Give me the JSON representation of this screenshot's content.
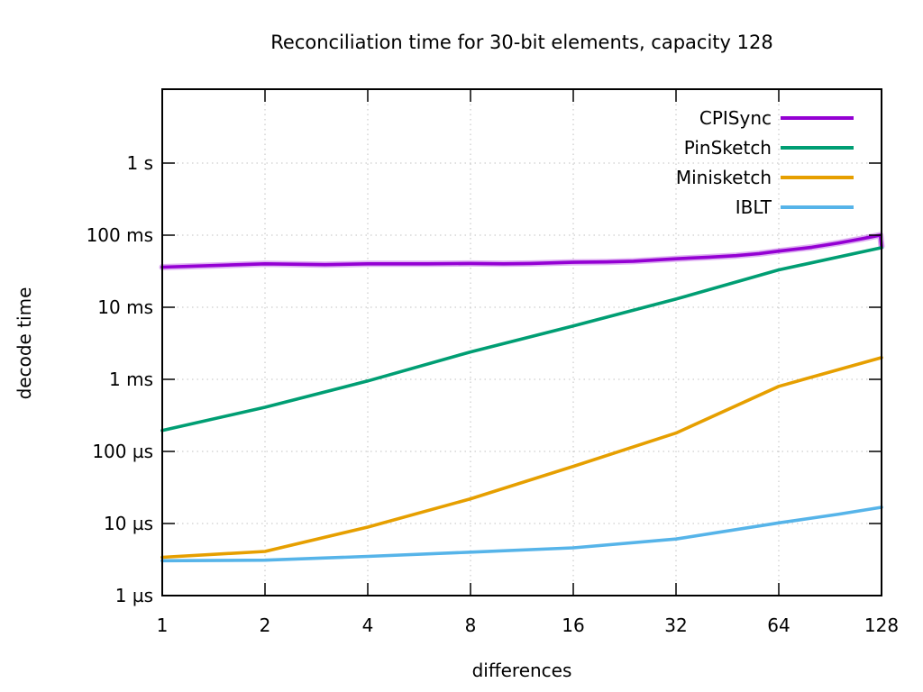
{
  "title": "Reconciliation time for 30-bit elements, capacity 128",
  "chart_data": {
    "type": "line",
    "x_scale": "log2",
    "y_scale": "log10",
    "xlabel": "differences",
    "ylabel": "decode time",
    "grid": true,
    "legend_position": "top-right-inside",
    "xlim": [
      1,
      128
    ],
    "ylim_us": [
      1,
      10600000
    ],
    "x_ticks": [
      {
        "x": 1,
        "label": "1"
      },
      {
        "x": 2,
        "label": "2"
      },
      {
        "x": 4,
        "label": "4"
      },
      {
        "x": 8,
        "label": "8"
      },
      {
        "x": 16,
        "label": "16"
      },
      {
        "x": 32,
        "label": "32"
      },
      {
        "x": 64,
        "label": "64"
      },
      {
        "x": 128,
        "label": "128"
      }
    ],
    "y_ticks": [
      {
        "us": 1,
        "label": "1 µs"
      },
      {
        "us": 10,
        "label": "10 µs"
      },
      {
        "us": 100,
        "label": "100 µs"
      },
      {
        "us": 1000,
        "label": "1 ms"
      },
      {
        "us": 10000,
        "label": "10 ms"
      },
      {
        "us": 100000,
        "label": "100 ms"
      },
      {
        "us": 1000000,
        "label": "1 s"
      }
    ],
    "series": [
      {
        "name": "CPISync",
        "color": "#9400d3",
        "halo": true,
        "points_us": [
          [
            1,
            36000
          ],
          [
            2,
            40000
          ],
          [
            3,
            39000
          ],
          [
            4,
            40000
          ],
          [
            6,
            40000
          ],
          [
            8,
            40500
          ],
          [
            10,
            40000
          ],
          [
            12,
            40500
          ],
          [
            16,
            42000
          ],
          [
            20,
            42500
          ],
          [
            24,
            43500
          ],
          [
            32,
            47000
          ],
          [
            40,
            49500
          ],
          [
            48,
            52000
          ],
          [
            56,
            55500
          ],
          [
            64,
            60000
          ],
          [
            80,
            68000
          ],
          [
            96,
            78000
          ],
          [
            112,
            89000
          ],
          [
            124,
            98000
          ],
          [
            127,
            100000
          ],
          [
            128,
            70000
          ]
        ]
      },
      {
        "name": "PinSketch",
        "color": "#009e73",
        "halo": false,
        "points_us": [
          [
            1,
            195
          ],
          [
            2,
            410
          ],
          [
            4,
            950
          ],
          [
            8,
            2400
          ],
          [
            16,
            5500
          ],
          [
            32,
            13000
          ],
          [
            64,
            33000
          ],
          [
            128,
            67000
          ]
        ]
      },
      {
        "name": "Minisketch",
        "color": "#e69f00",
        "halo": false,
        "points_us": [
          [
            1,
            3.4
          ],
          [
            2,
            4.1
          ],
          [
            4,
            8.9
          ],
          [
            8,
            22
          ],
          [
            16,
            62
          ],
          [
            32,
            180
          ],
          [
            64,
            800
          ],
          [
            128,
            2000
          ]
        ]
      },
      {
        "name": "IBLT",
        "color": "#56b4e9",
        "halo": false,
        "points_us": [
          [
            1,
            3.05
          ],
          [
            2,
            3.1
          ],
          [
            4,
            3.5
          ],
          [
            8,
            4.0
          ],
          [
            16,
            4.6
          ],
          [
            32,
            6.1
          ],
          [
            64,
            10.2
          ],
          [
            96,
            13.5
          ],
          [
            128,
            16.8
          ]
        ]
      }
    ]
  }
}
